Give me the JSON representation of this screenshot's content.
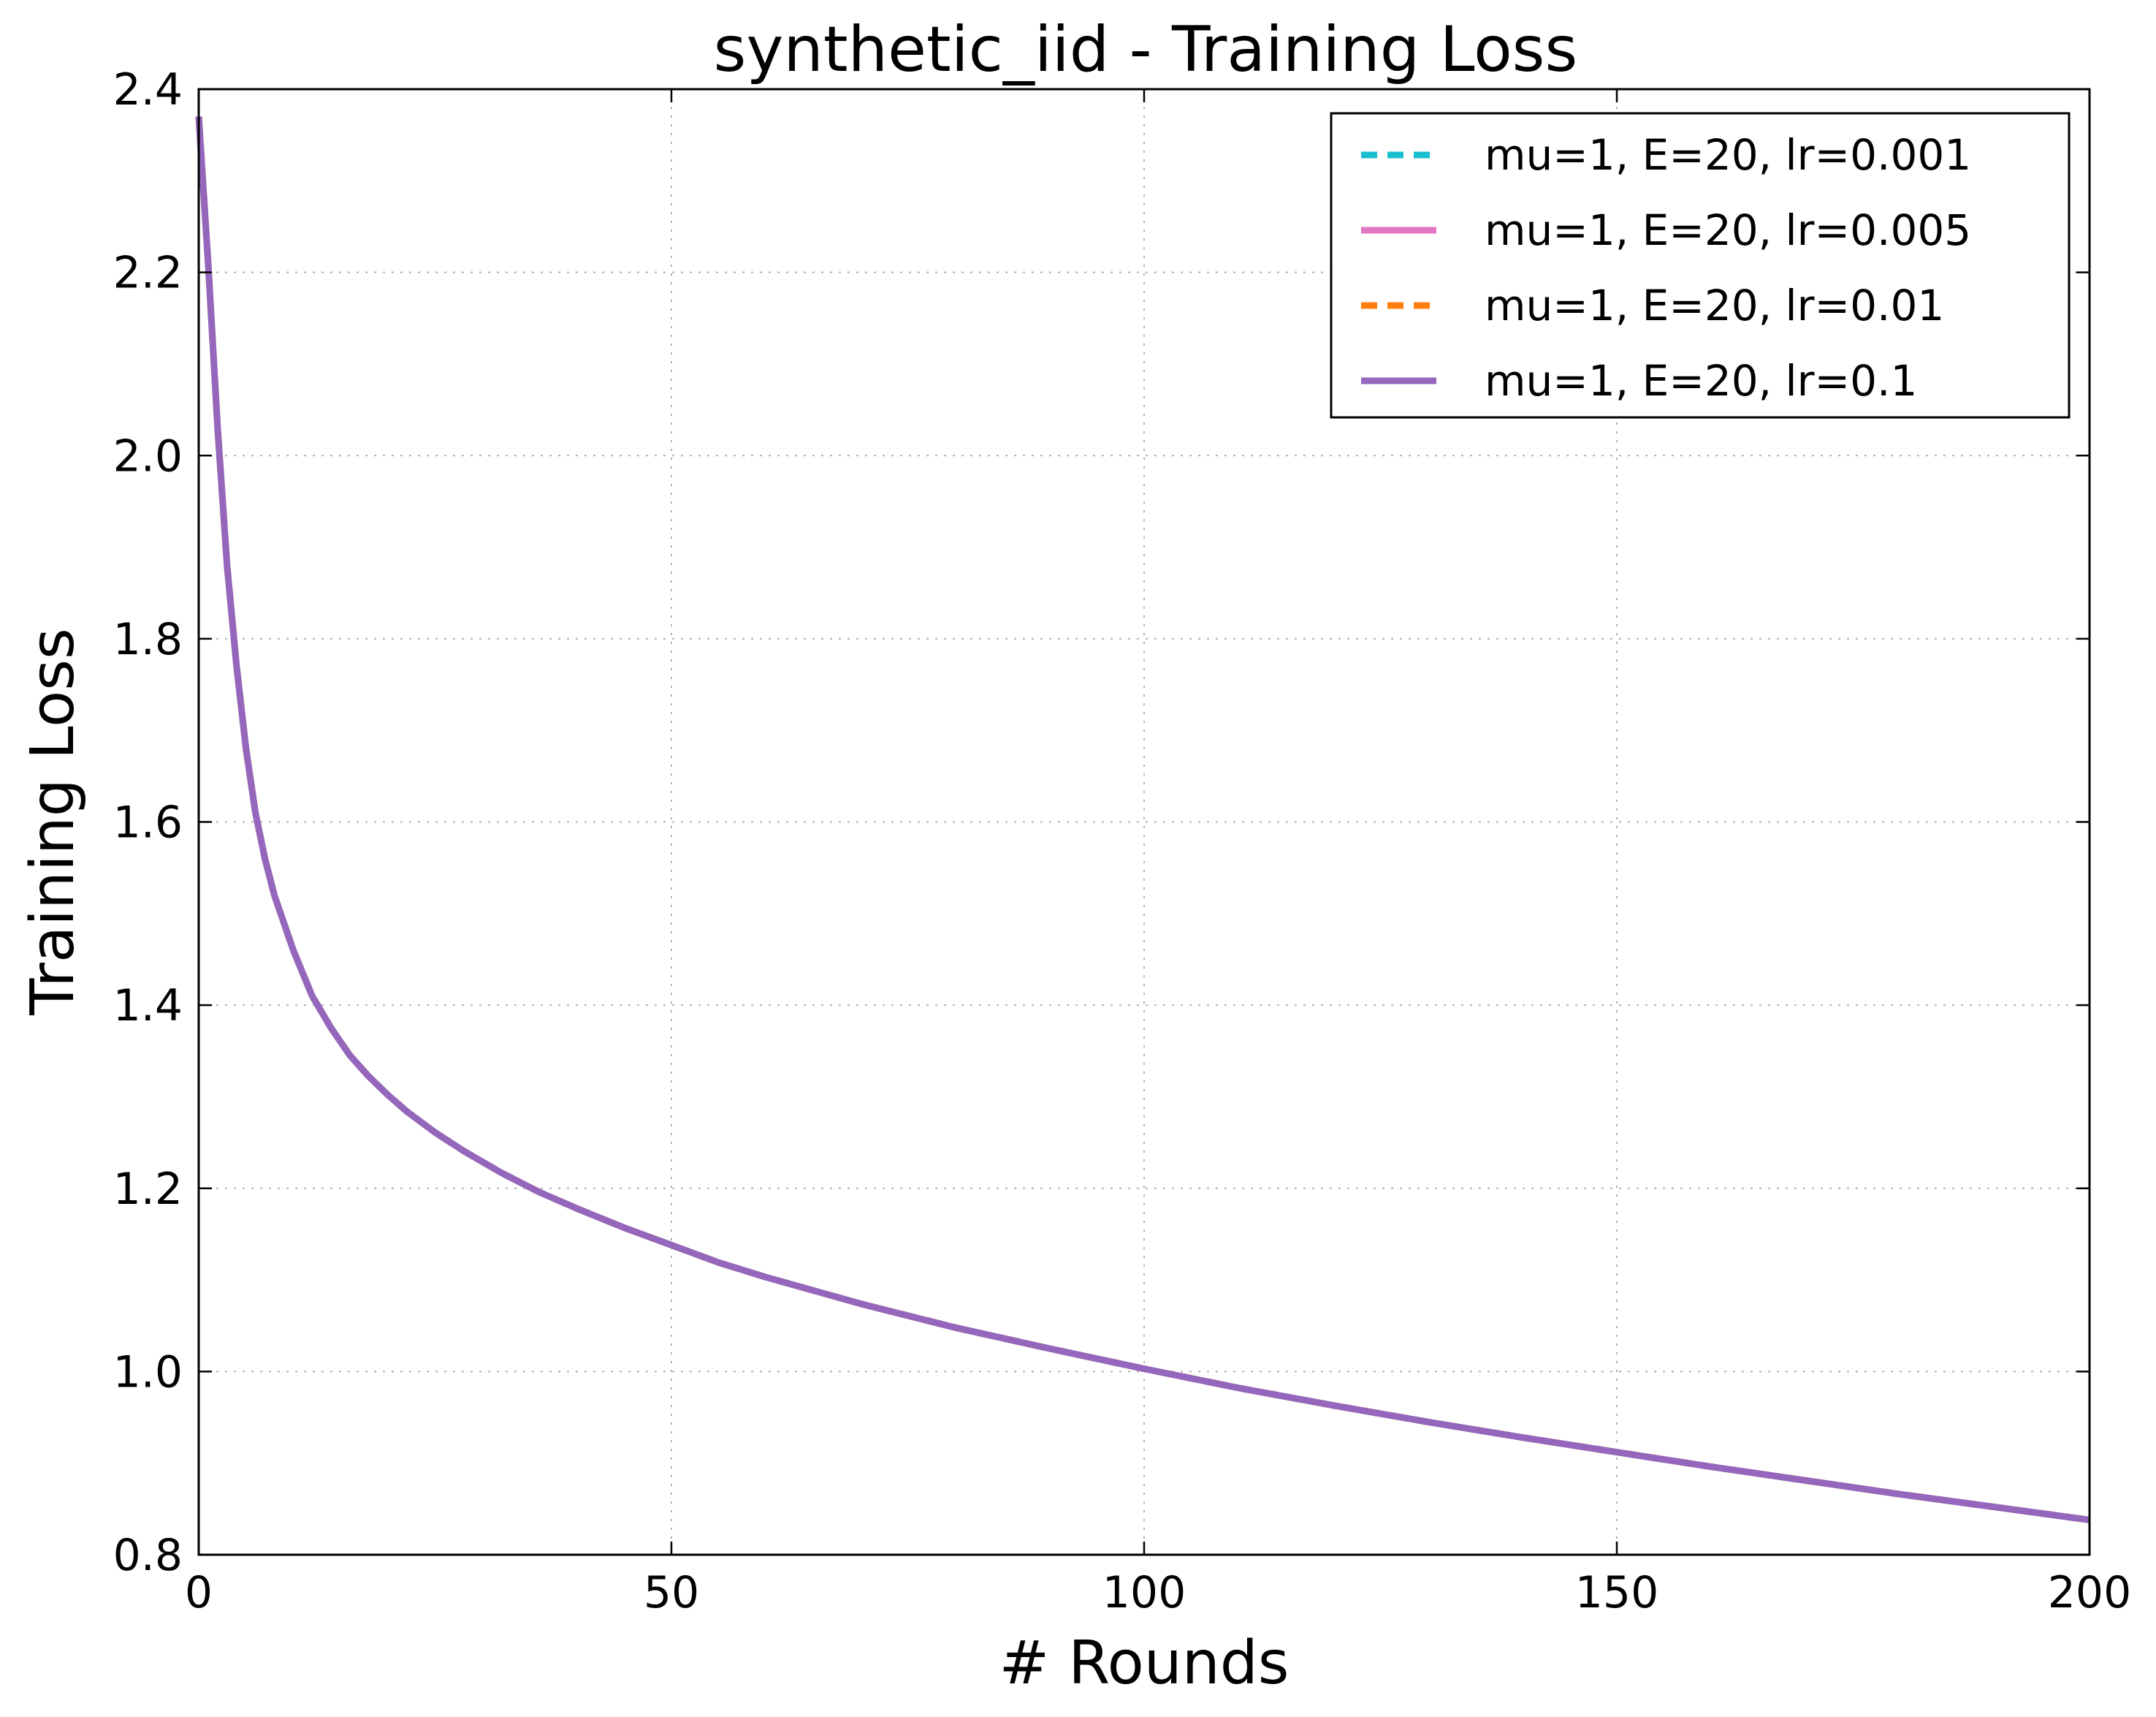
{
  "chart_data": {
    "type": "line",
    "title": "synthetic_iid - Training Loss",
    "xlabel": "# Rounds",
    "ylabel": "Training Loss",
    "xlim": [
      0,
      200
    ],
    "ylim": [
      0.8,
      2.4
    ],
    "xticks": [
      0,
      50,
      100,
      150,
      200
    ],
    "xtick_labels": [
      "0",
      "50",
      "100",
      "150",
      "200"
    ],
    "yticks": [
      0.8,
      1.0,
      1.2,
      1.4,
      1.6,
      1.8,
      2.0,
      2.2,
      2.4
    ],
    "ytick_labels": [
      "0.8",
      "1.0",
      "1.2",
      "1.4",
      "1.6",
      "1.8",
      "2.0",
      "2.2",
      "2.4"
    ],
    "grid": true,
    "legend_position": "top-right",
    "x": [
      0,
      1,
      2,
      3,
      4,
      5,
      6,
      7,
      8,
      10,
      12,
      14,
      16,
      18,
      20,
      22,
      25,
      28,
      32,
      36,
      40,
      45,
      50,
      55,
      60,
      70,
      80,
      90,
      100,
      110,
      120,
      130,
      140,
      150,
      160,
      170,
      180,
      190,
      200
    ],
    "series": [
      {
        "name": "mu=1, E=20, lr=0.001",
        "color": "#17becf",
        "dash": "dashed",
        "values": [
          2.37,
          2.21,
          2.03,
          1.88,
          1.77,
          1.68,
          1.61,
          1.56,
          1.52,
          1.46,
          1.41,
          1.375,
          1.345,
          1.322,
          1.302,
          1.284,
          1.261,
          1.241,
          1.217,
          1.196,
          1.178,
          1.157,
          1.138,
          1.119,
          1.103,
          1.074,
          1.048,
          1.025,
          1.003,
          0.982,
          0.963,
          0.945,
          0.928,
          0.912,
          0.896,
          0.881,
          0.866,
          0.852,
          0.838
        ]
      },
      {
        "name": "mu=1, E=20, lr=0.005",
        "color": "#e377c2",
        "dash": "solid",
        "values": [
          2.37,
          2.21,
          2.03,
          1.88,
          1.77,
          1.68,
          1.61,
          1.56,
          1.52,
          1.46,
          1.41,
          1.375,
          1.345,
          1.322,
          1.302,
          1.284,
          1.261,
          1.241,
          1.217,
          1.196,
          1.178,
          1.157,
          1.138,
          1.119,
          1.103,
          1.074,
          1.048,
          1.025,
          1.003,
          0.982,
          0.963,
          0.945,
          0.928,
          0.912,
          0.896,
          0.881,
          0.866,
          0.852,
          0.838
        ]
      },
      {
        "name": "mu=1, E=20, lr=0.01",
        "color": "#ff7f0e",
        "dash": "dashed",
        "values": [
          2.37,
          2.21,
          2.03,
          1.88,
          1.77,
          1.68,
          1.61,
          1.56,
          1.52,
          1.46,
          1.41,
          1.375,
          1.345,
          1.322,
          1.302,
          1.284,
          1.261,
          1.241,
          1.217,
          1.196,
          1.178,
          1.157,
          1.138,
          1.119,
          1.103,
          1.074,
          1.048,
          1.025,
          1.003,
          0.982,
          0.963,
          0.945,
          0.928,
          0.912,
          0.896,
          0.881,
          0.866,
          0.852,
          0.838
        ]
      },
      {
        "name": "mu=1, E=20, lr=0.1",
        "color": "#9467bd",
        "dash": "solid",
        "values": [
          2.37,
          2.21,
          2.03,
          1.88,
          1.77,
          1.68,
          1.61,
          1.56,
          1.52,
          1.46,
          1.41,
          1.375,
          1.345,
          1.322,
          1.302,
          1.284,
          1.261,
          1.241,
          1.217,
          1.196,
          1.178,
          1.157,
          1.138,
          1.119,
          1.103,
          1.074,
          1.048,
          1.025,
          1.003,
          0.982,
          0.963,
          0.945,
          0.928,
          0.912,
          0.896,
          0.881,
          0.866,
          0.852,
          0.838
        ]
      }
    ]
  }
}
